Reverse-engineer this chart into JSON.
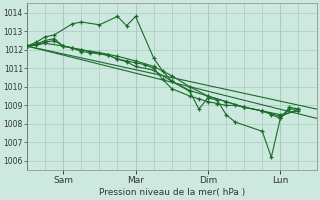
{
  "xlabel": "Pression niveau de la mer( hPa )",
  "ylim": [
    1005.5,
    1014.5
  ],
  "yticks": [
    1006,
    1007,
    1008,
    1009,
    1010,
    1011,
    1012,
    1013,
    1014
  ],
  "background_color": "#cce8df",
  "grid_color": "#a8ccbf",
  "line_color": "#1a6b2a",
  "day_labels": [
    "Sam",
    "Mar",
    "Dim",
    "Lun"
  ],
  "day_positions": [
    16,
    48,
    80,
    112
  ],
  "xlim": [
    0,
    128
  ],
  "trend_lines": [
    {
      "x": [
        0,
        128
      ],
      "y": [
        1012.2,
        1008.3
      ]
    },
    {
      "x": [
        0,
        128
      ],
      "y": [
        1012.2,
        1008.8
      ]
    }
  ],
  "lines": [
    {
      "x": [
        0,
        4,
        8,
        12,
        20,
        24,
        32,
        40,
        44,
        48,
        56,
        60,
        64,
        72,
        76,
        80,
        84,
        88,
        92,
        104,
        108,
        112,
        116,
        120
      ],
      "y": [
        1012.2,
        1012.4,
        1012.7,
        1012.8,
        1013.4,
        1013.5,
        1013.35,
        1013.8,
        1013.3,
        1013.8,
        1011.55,
        1010.85,
        1010.3,
        1009.75,
        1008.8,
        1009.4,
        1009.3,
        1008.5,
        1008.1,
        1007.6,
        1006.2,
        1008.3,
        1008.9,
        1008.8
      ]
    },
    {
      "x": [
        0,
        4,
        8,
        12,
        16,
        20,
        24,
        28,
        36,
        40,
        44,
        48,
        52,
        56,
        60,
        64,
        72,
        76,
        80,
        84,
        88,
        92,
        96,
        104,
        108,
        112,
        116,
        120
      ],
      "y": [
        1012.2,
        1012.3,
        1012.5,
        1012.6,
        1012.2,
        1012.1,
        1012.0,
        1011.9,
        1011.7,
        1011.5,
        1011.4,
        1011.3,
        1011.2,
        1011.0,
        1010.4,
        1009.9,
        1009.5,
        1009.35,
        1009.2,
        1009.1,
        1009.0,
        1009.0,
        1008.9,
        1008.7,
        1008.5,
        1008.3,
        1008.8,
        1008.8
      ]
    },
    {
      "x": [
        0,
        4,
        8,
        12,
        16,
        20,
        24,
        28,
        36,
        40,
        44,
        48,
        56,
        64,
        72,
        80,
        88,
        96,
        104,
        112,
        120
      ],
      "y": [
        1012.2,
        1012.3,
        1012.4,
        1012.5,
        1012.2,
        1012.1,
        1011.9,
        1011.85,
        1011.7,
        1011.5,
        1011.35,
        1011.1,
        1010.9,
        1010.3,
        1009.8,
        1009.5,
        1009.2,
        1008.9,
        1008.7,
        1008.5,
        1008.7
      ]
    },
    {
      "x": [
        0,
        4,
        8,
        16,
        24,
        32,
        40,
        48,
        56,
        64,
        72,
        80,
        88,
        96,
        104,
        112,
        120
      ],
      "y": [
        1012.2,
        1012.25,
        1012.35,
        1012.2,
        1012.0,
        1011.85,
        1011.65,
        1011.4,
        1011.1,
        1010.6,
        1010.0,
        1009.5,
        1009.2,
        1008.9,
        1008.7,
        1008.4,
        1008.8
      ]
    }
  ]
}
